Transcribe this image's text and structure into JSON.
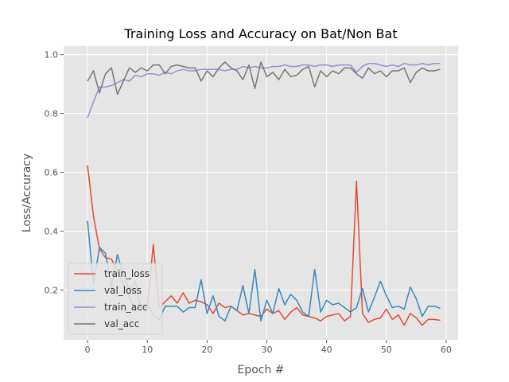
{
  "chart_data": {
    "type": "line",
    "title": "Training Loss and Accuracy on Bat/Non Bat",
    "xlabel": "Epoch #",
    "ylabel": "Loss/Accuracy",
    "xlim": [
      -4,
      62
    ],
    "ylim": [
      0.03,
      1.03
    ],
    "xticks": [
      0,
      10,
      20,
      30,
      40,
      50,
      60
    ],
    "yticks": [
      0.2,
      0.4,
      0.6,
      0.8,
      1.0
    ],
    "xtick_labels": [
      "0",
      "10",
      "20",
      "30",
      "40",
      "50",
      "60"
    ],
    "ytick_labels": [
      "0.2",
      "0.4",
      "0.6",
      "0.8",
      "1.0"
    ],
    "grid": true,
    "legend_position": "lower-left",
    "x": [
      0,
      1,
      2,
      3,
      4,
      5,
      6,
      7,
      8,
      9,
      10,
      11,
      12,
      13,
      14,
      15,
      16,
      17,
      18,
      19,
      20,
      21,
      22,
      23,
      24,
      25,
      26,
      27,
      28,
      29,
      30,
      31,
      32,
      33,
      34,
      35,
      36,
      37,
      38,
      39,
      40,
      41,
      42,
      43,
      44,
      45,
      46,
      47,
      48,
      49,
      50,
      51,
      52,
      53,
      54,
      55,
      56,
      57,
      58,
      59
    ],
    "series": [
      {
        "name": "train_loss",
        "color": "#E24A33",
        "values": [
          0.624,
          0.45,
          0.34,
          0.31,
          0.305,
          0.265,
          0.22,
          0.175,
          0.13,
          0.145,
          0.14,
          0.355,
          0.14,
          0.16,
          0.18,
          0.155,
          0.19,
          0.155,
          0.165,
          0.16,
          0.15,
          0.12,
          0.155,
          0.14,
          0.145,
          0.13,
          0.115,
          0.12,
          0.115,
          0.11,
          0.135,
          0.12,
          0.13,
          0.1,
          0.125,
          0.14,
          0.115,
          0.11,
          0.105,
          0.095,
          0.11,
          0.115,
          0.12,
          0.095,
          0.11,
          0.57,
          0.12,
          0.09,
          0.1,
          0.105,
          0.135,
          0.1,
          0.115,
          0.08,
          0.12,
          0.105,
          0.08,
          0.1,
          0.1,
          0.097
        ]
      },
      {
        "name": "val_loss",
        "color": "#348ABD",
        "values": [
          0.435,
          0.22,
          0.345,
          0.325,
          0.21,
          0.32,
          0.25,
          0.2,
          0.23,
          0.13,
          0.15,
          0.115,
          0.1,
          0.145,
          0.145,
          0.145,
          0.125,
          0.14,
          0.14,
          0.235,
          0.12,
          0.18,
          0.11,
          0.095,
          0.145,
          0.13,
          0.215,
          0.12,
          0.27,
          0.095,
          0.165,
          0.12,
          0.205,
          0.15,
          0.185,
          0.165,
          0.125,
          0.11,
          0.27,
          0.125,
          0.165,
          0.15,
          0.155,
          0.14,
          0.125,
          0.14,
          0.205,
          0.125,
          0.175,
          0.23,
          0.18,
          0.14,
          0.145,
          0.135,
          0.21,
          0.17,
          0.11,
          0.145,
          0.145,
          0.138
        ]
      },
      {
        "name": "train_acc",
        "color": "#988ED5",
        "values": [
          0.785,
          0.84,
          0.89,
          0.89,
          0.895,
          0.905,
          0.915,
          0.91,
          0.93,
          0.925,
          0.935,
          0.935,
          0.93,
          0.94,
          0.935,
          0.945,
          0.95,
          0.945,
          0.945,
          0.95,
          0.95,
          0.95,
          0.95,
          0.945,
          0.95,
          0.95,
          0.96,
          0.955,
          0.96,
          0.955,
          0.955,
          0.96,
          0.96,
          0.965,
          0.96,
          0.96,
          0.965,
          0.965,
          0.96,
          0.965,
          0.965,
          0.96,
          0.965,
          0.965,
          0.965,
          0.94,
          0.96,
          0.97,
          0.97,
          0.965,
          0.96,
          0.965,
          0.96,
          0.97,
          0.965,
          0.965,
          0.97,
          0.965,
          0.97,
          0.97
        ]
      },
      {
        "name": "val_acc",
        "color": "#777777",
        "values": [
          0.91,
          0.945,
          0.87,
          0.935,
          0.955,
          0.865,
          0.91,
          0.955,
          0.94,
          0.955,
          0.945,
          0.965,
          0.965,
          0.935,
          0.96,
          0.965,
          0.96,
          0.955,
          0.955,
          0.91,
          0.945,
          0.925,
          0.955,
          0.975,
          0.955,
          0.945,
          0.915,
          0.965,
          0.885,
          0.975,
          0.925,
          0.94,
          0.915,
          0.95,
          0.925,
          0.93,
          0.95,
          0.96,
          0.89,
          0.945,
          0.925,
          0.945,
          0.935,
          0.955,
          0.955,
          0.935,
          0.92,
          0.955,
          0.935,
          0.945,
          0.925,
          0.945,
          0.945,
          0.955,
          0.905,
          0.94,
          0.955,
          0.945,
          0.945,
          0.95
        ]
      }
    ]
  }
}
